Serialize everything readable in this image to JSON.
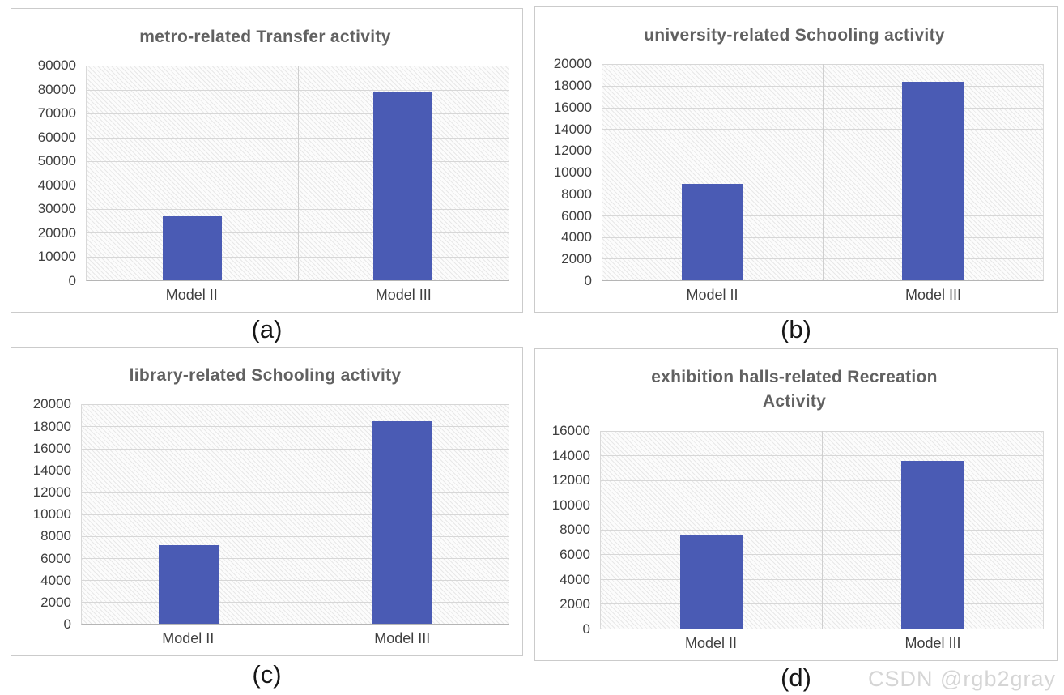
{
  "page": {
    "watermark": "CSDN @rgb2gray"
  },
  "colors": {
    "bar": "#4a5bb4",
    "title": "#616161",
    "tick": "#3f3f3f",
    "gridline": "#d7d7d7",
    "panel_border": "#cbcbcb",
    "watermark": "#d5d5d5"
  },
  "captions": [
    "(a)",
    "(b)",
    "(c)",
    "(d)"
  ],
  "chart_data": [
    {
      "type": "bar",
      "panel": "a",
      "title": "metro-related Transfer activity",
      "categories": [
        "Model II",
        "Model III"
      ],
      "values": [
        26800,
        79000
      ],
      "xlabel": "",
      "ylabel": "",
      "ylim": [
        0,
        90000
      ],
      "ytick_step": 10000,
      "grid": true,
      "legend": false,
      "bar_color": "#4a5bb4"
    },
    {
      "type": "bar",
      "panel": "b",
      "title": "university-related Schooling activity",
      "categories": [
        "Model II",
        "Model III"
      ],
      "values": [
        8900,
        18400
      ],
      "xlabel": "",
      "ylabel": "",
      "ylim": [
        0,
        20000
      ],
      "ytick_step": 2000,
      "grid": true,
      "legend": false,
      "bar_color": "#4a5bb4"
    },
    {
      "type": "bar",
      "panel": "c",
      "title": "library-related Schooling activity",
      "categories": [
        "Model II",
        "Model III"
      ],
      "values": [
        7200,
        18500
      ],
      "xlabel": "",
      "ylabel": "",
      "ylim": [
        0,
        20000
      ],
      "ytick_step": 2000,
      "grid": true,
      "legend": false,
      "bar_color": "#4a5bb4"
    },
    {
      "type": "bar",
      "panel": "d",
      "title": "exhibition halls-related Recreation\nActivity",
      "categories": [
        "Model II",
        "Model III"
      ],
      "values": [
        7600,
        13600
      ],
      "xlabel": "",
      "ylabel": "",
      "ylim": [
        0,
        16000
      ],
      "ytick_step": 2000,
      "grid": true,
      "legend": false,
      "bar_color": "#4a5bb4"
    }
  ]
}
